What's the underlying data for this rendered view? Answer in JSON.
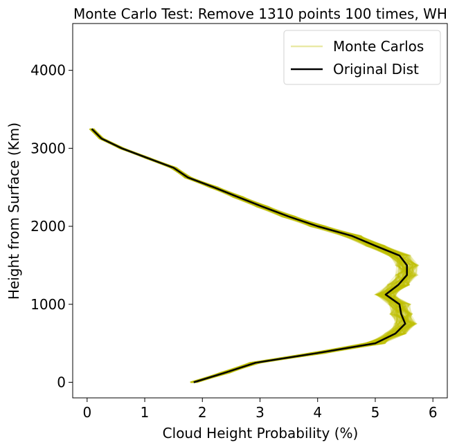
{
  "chart_data": {
    "type": "line",
    "title": "Monte Carlo Test: Remove 1310 points 100 times, WH",
    "xlabel": "Cloud Height Probability (%)",
    "ylabel": "Height from Surface (Km)",
    "xlim": [
      -0.25,
      6.25
    ],
    "ylim": [
      -200,
      4600
    ],
    "xticks": [
      0,
      1,
      2,
      3,
      4,
      5,
      6
    ],
    "yticks": [
      0,
      1000,
      2000,
      3000,
      4000
    ],
    "grid": false,
    "legend_position": "top-right",
    "legend": [
      "Monte Carlos",
      "Original Dist"
    ],
    "colors": {
      "monte_carlo": "#c0c000",
      "original": "#000000"
    },
    "monte_carlo_count": 100,
    "y": [
      0,
      125,
      250,
      375,
      500,
      625,
      750,
      875,
      1000,
      1125,
      1250,
      1375,
      1500,
      1625,
      1750,
      1875,
      2000,
      2125,
      2250,
      2375,
      2500,
      2625,
      2750,
      2875,
      3000,
      3125,
      3250
    ],
    "series": [
      {
        "name": "Original Dist",
        "values": [
          1.85,
          2.4,
          2.92,
          4.0,
          5.0,
          5.35,
          5.52,
          5.45,
          5.42,
          5.18,
          5.4,
          5.55,
          5.55,
          5.42,
          5.0,
          4.6,
          4.0,
          3.5,
          3.05,
          2.62,
          2.2,
          1.75,
          1.5,
          1.05,
          0.6,
          0.25,
          0.08
        ]
      }
    ]
  }
}
